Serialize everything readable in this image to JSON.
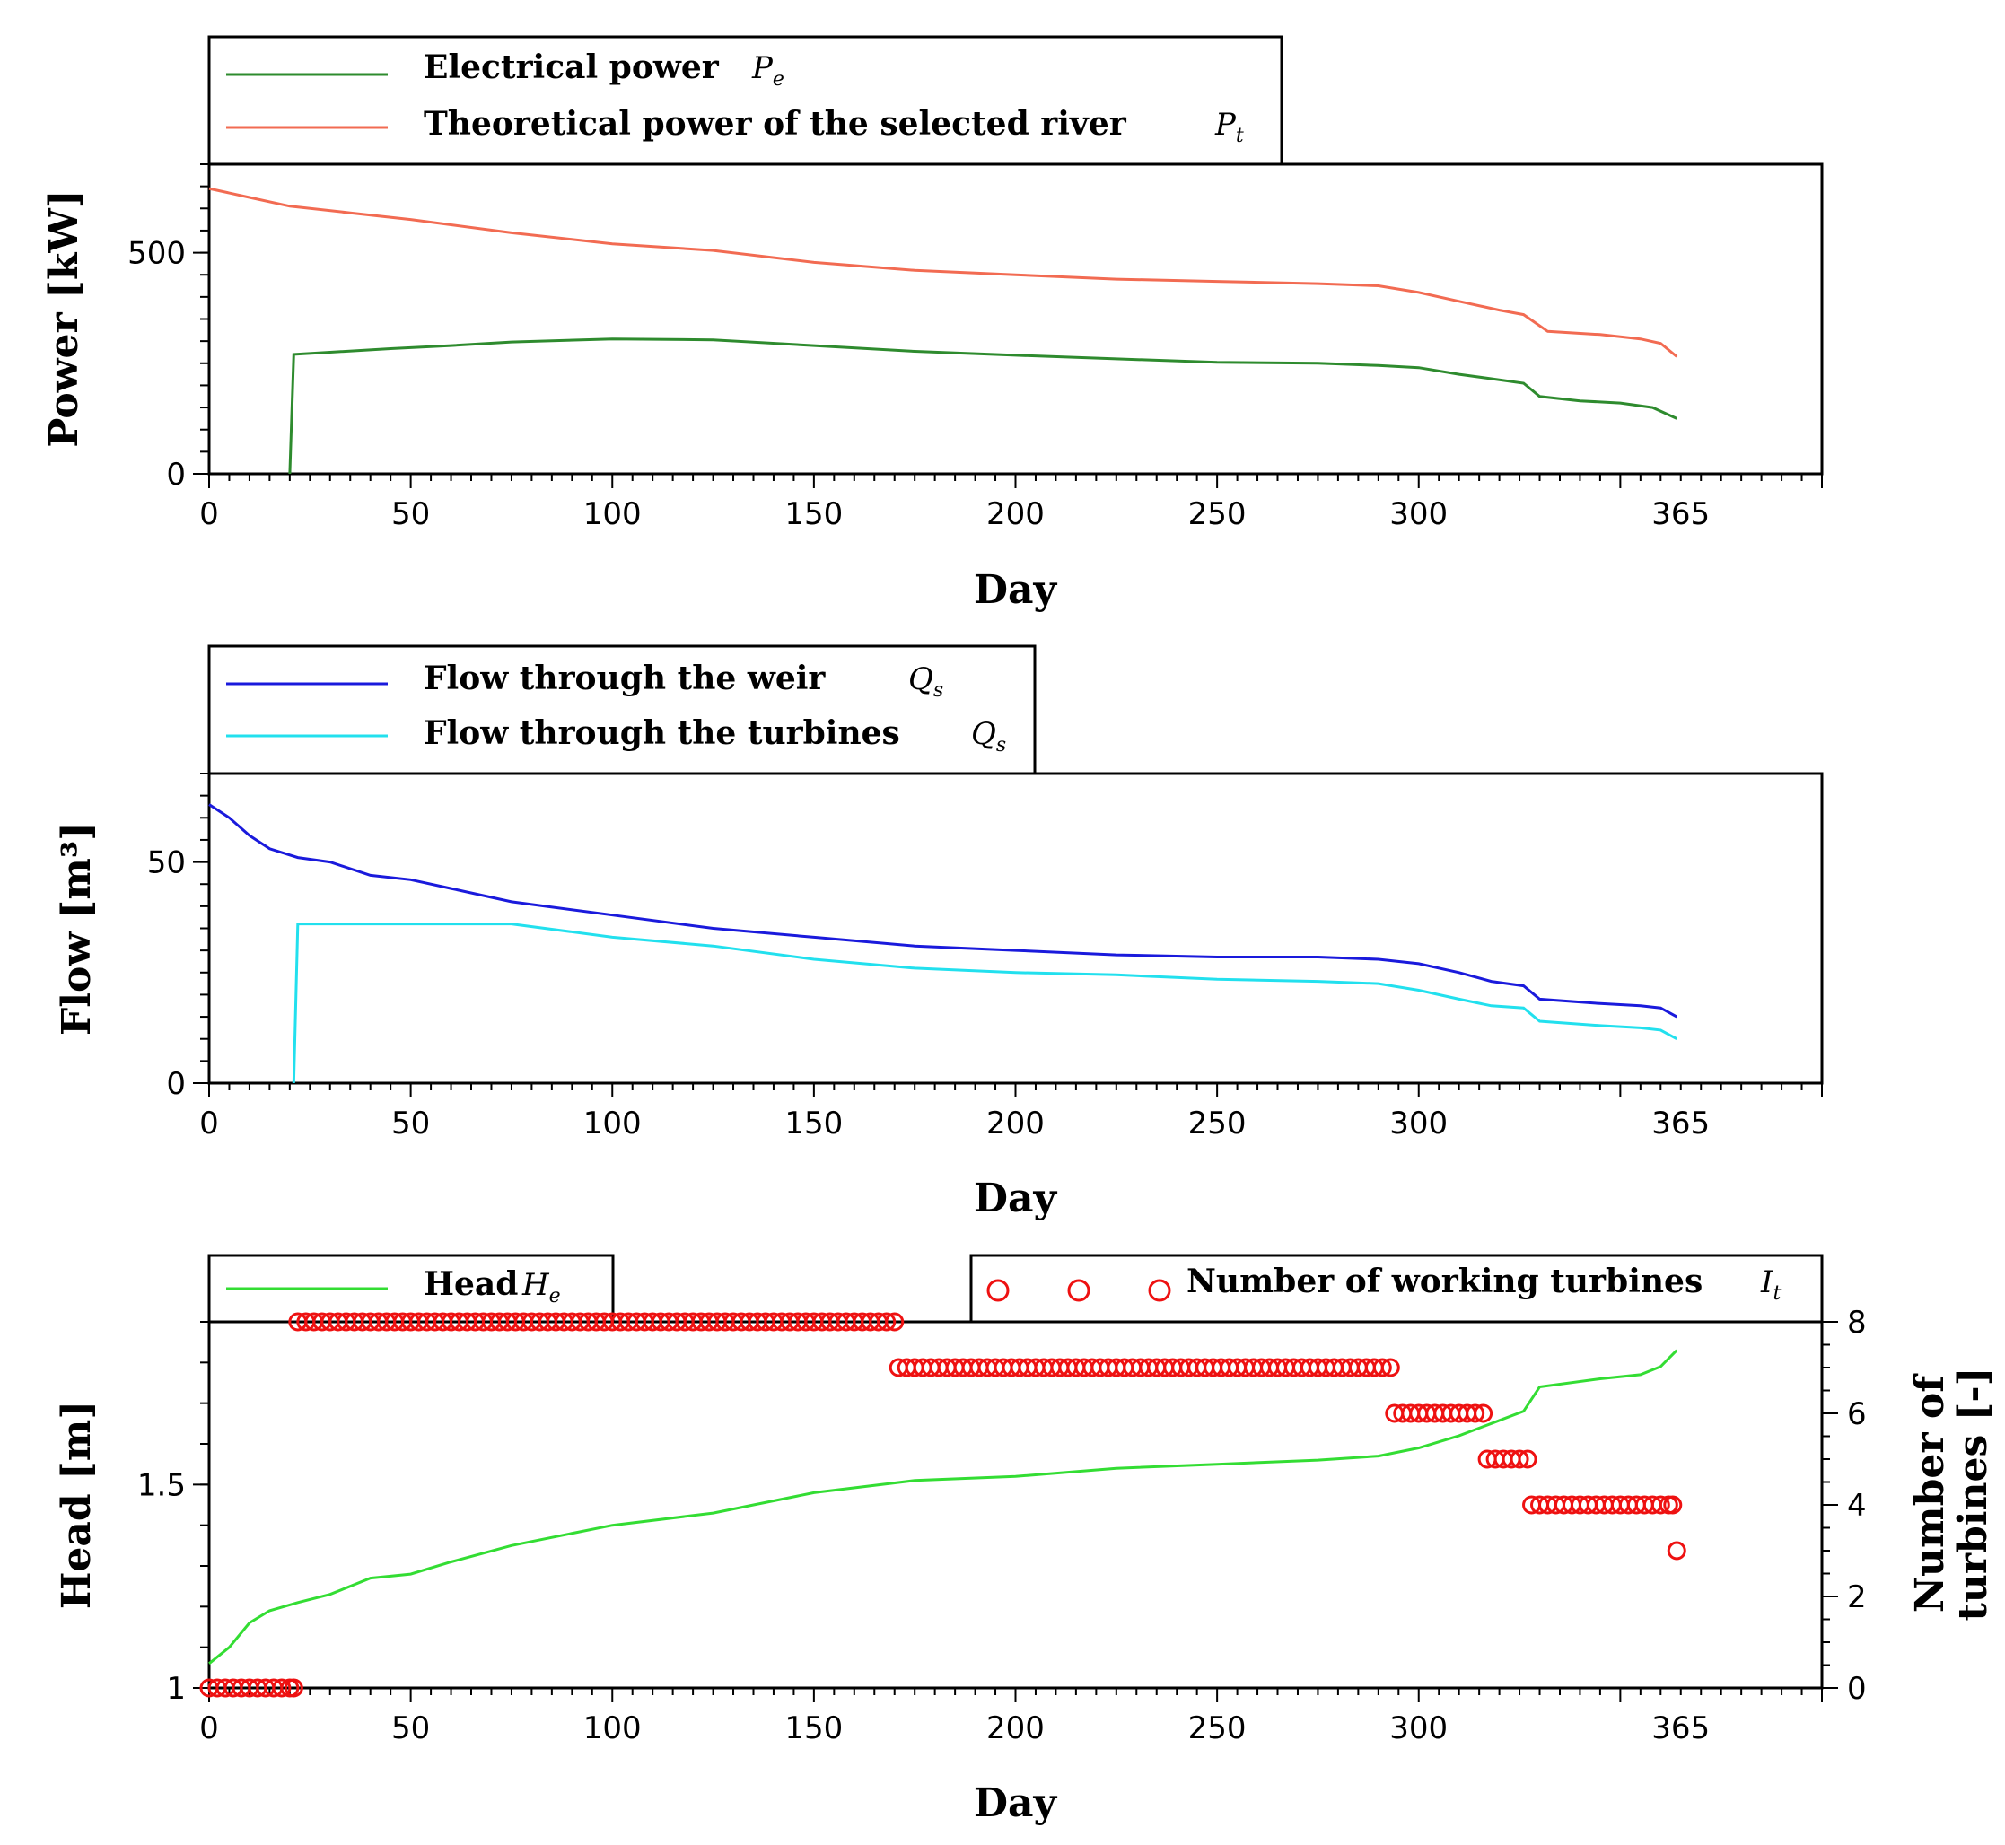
{
  "colors": {
    "electrical": "#2e8b2e",
    "theoretical": "#f26b52",
    "weir": "#1a1adc",
    "turbines_flow": "#22e0ee",
    "head": "#33dd33",
    "turbine_markers": "#ee1111"
  },
  "chart_data": [
    {
      "type": "line",
      "title": "",
      "xlabel": "Day",
      "ylabel": "Power [kW]",
      "xlim": [
        0,
        400
      ],
      "ylim": [
        0,
        700
      ],
      "x_ticks": [
        "0",
        "50",
        "100",
        "150",
        "200",
        "250",
        "300",
        "365"
      ],
      "x_tick_values": [
        0,
        50,
        100,
        150,
        200,
        250,
        300,
        365
      ],
      "y_ticks": [
        "0",
        "500"
      ],
      "y_tick_values": [
        0,
        500
      ],
      "legend": [
        {
          "label": "Electrical power",
          "symbol": "P",
          "sub": "e"
        },
        {
          "label": "Theoretical power of  the  selected  river",
          "symbol": "P",
          "sub": "t"
        }
      ],
      "series": [
        {
          "name": "Electrical power Pe",
          "points": [
            [
              20,
              0
            ],
            [
              21,
              270
            ],
            [
              30,
              275
            ],
            [
              45,
              283
            ],
            [
              60,
              290
            ],
            [
              75,
              298
            ],
            [
              100,
              305
            ],
            [
              125,
              303
            ],
            [
              150,
              290
            ],
            [
              175,
              277
            ],
            [
              200,
              268
            ],
            [
              225,
              260
            ],
            [
              250,
              252
            ],
            [
              275,
              250
            ],
            [
              290,
              245
            ],
            [
              300,
              240
            ],
            [
              310,
              225
            ],
            [
              318,
              215
            ],
            [
              326,
              205
            ],
            [
              330,
              175
            ],
            [
              340,
              165
            ],
            [
              350,
              160
            ],
            [
              358,
              150
            ],
            [
              364,
              125
            ]
          ]
        },
        {
          "name": "Theoretical power Pt",
          "points": [
            [
              0,
              645
            ],
            [
              10,
              625
            ],
            [
              20,
              605
            ],
            [
              35,
              590
            ],
            [
              50,
              575
            ],
            [
              75,
              545
            ],
            [
              100,
              520
            ],
            [
              125,
              505
            ],
            [
              150,
              478
            ],
            [
              175,
              460
            ],
            [
              200,
              450
            ],
            [
              225,
              440
            ],
            [
              250,
              435
            ],
            [
              275,
              430
            ],
            [
              290,
              425
            ],
            [
              300,
              410
            ],
            [
              310,
              390
            ],
            [
              320,
              370
            ],
            [
              326,
              360
            ],
            [
              332,
              322
            ],
            [
              345,
              315
            ],
            [
              355,
              305
            ],
            [
              360,
              295
            ],
            [
              364,
              265
            ]
          ]
        }
      ]
    },
    {
      "type": "line",
      "title": "",
      "xlabel": "Day",
      "ylabel": "Flow [m³]",
      "xlim": [
        0,
        400
      ],
      "ylim": [
        0,
        70
      ],
      "x_ticks": [
        "0",
        "50",
        "100",
        "150",
        "200",
        "250",
        "300",
        "365"
      ],
      "x_tick_values": [
        0,
        50,
        100,
        150,
        200,
        250,
        300,
        365
      ],
      "y_ticks": [
        "0",
        "50"
      ],
      "y_tick_values": [
        0,
        50
      ],
      "legend": [
        {
          "label": "Flow through  the  weir",
          "symbol": "Q",
          "sub": "s"
        },
        {
          "label": "Flow through  the  turbines",
          "symbol": "Q",
          "sub": "s"
        }
      ],
      "series": [
        {
          "name": "Flow through the weir",
          "points": [
            [
              0,
              63
            ],
            [
              5,
              60
            ],
            [
              10,
              56
            ],
            [
              15,
              53
            ],
            [
              22,
              51
            ],
            [
              30,
              50
            ],
            [
              40,
              47
            ],
            [
              50,
              46
            ],
            [
              60,
              44
            ],
            [
              75,
              41
            ],
            [
              100,
              38
            ],
            [
              125,
              35
            ],
            [
              150,
              33
            ],
            [
              175,
              31
            ],
            [
              200,
              30
            ],
            [
              225,
              29
            ],
            [
              250,
              28.5
            ],
            [
              275,
              28.5
            ],
            [
              290,
              28
            ],
            [
              300,
              27
            ],
            [
              310,
              25
            ],
            [
              318,
              23
            ],
            [
              326,
              22
            ],
            [
              330,
              19
            ],
            [
              345,
              18
            ],
            [
              355,
              17.5
            ],
            [
              360,
              17
            ],
            [
              364,
              15
            ]
          ]
        },
        {
          "name": "Flow through the turbines",
          "points": [
            [
              21,
              0
            ],
            [
              22,
              36
            ],
            [
              50,
              36
            ],
            [
              75,
              36
            ],
            [
              100,
              33
            ],
            [
              125,
              31
            ],
            [
              150,
              28
            ],
            [
              175,
              26
            ],
            [
              200,
              25
            ],
            [
              225,
              24.5
            ],
            [
              250,
              23.5
            ],
            [
              275,
              23
            ],
            [
              290,
              22.5
            ],
            [
              300,
              21
            ],
            [
              310,
              19
            ],
            [
              318,
              17.5
            ],
            [
              326,
              17
            ],
            [
              330,
              14
            ],
            [
              345,
              13
            ],
            [
              355,
              12.5
            ],
            [
              360,
              12
            ],
            [
              364,
              10
            ]
          ]
        }
      ]
    },
    {
      "type": "line+scatter",
      "title": "",
      "xlabel": "Day",
      "ylabel": "Head [m]",
      "y2label": "Number  of turbines [-]",
      "xlim": [
        0,
        400
      ],
      "ylim": [
        1,
        1.9
      ],
      "y2lim": [
        0,
        8
      ],
      "x_ticks": [
        "0",
        "50",
        "100",
        "150",
        "200",
        "250",
        "300",
        "365"
      ],
      "x_tick_values": [
        0,
        50,
        100,
        150,
        200,
        250,
        300,
        365
      ],
      "y_ticks": [
        "1",
        "1.5"
      ],
      "y_tick_values": [
        1,
        1.5
      ],
      "y2_ticks": [
        "0",
        "2",
        "4",
        "6",
        "8"
      ],
      "y2_tick_values": [
        0,
        2,
        4,
        6,
        8
      ],
      "legend": [
        {
          "label": "Head",
          "symbol": "H",
          "sub": "e"
        },
        {
          "label": "Number of  working turbines",
          "symbol": "I",
          "sub": "t"
        }
      ],
      "series": [
        {
          "name": "Head He",
          "axis": "left",
          "points": [
            [
              0,
              1.06
            ],
            [
              5,
              1.1
            ],
            [
              10,
              1.16
            ],
            [
              15,
              1.19
            ],
            [
              22,
              1.21
            ],
            [
              30,
              1.23
            ],
            [
              40,
              1.27
            ],
            [
              50,
              1.28
            ],
            [
              60,
              1.31
            ],
            [
              75,
              1.35
            ],
            [
              100,
              1.4
            ],
            [
              125,
              1.43
            ],
            [
              150,
              1.48
            ],
            [
              175,
              1.51
            ],
            [
              200,
              1.52
            ],
            [
              225,
              1.54
            ],
            [
              250,
              1.55
            ],
            [
              275,
              1.56
            ],
            [
              290,
              1.57
            ],
            [
              300,
              1.59
            ],
            [
              310,
              1.62
            ],
            [
              318,
              1.65
            ],
            [
              326,
              1.68
            ],
            [
              330,
              1.74
            ],
            [
              345,
              1.76
            ],
            [
              355,
              1.77
            ],
            [
              360,
              1.79
            ],
            [
              364,
              1.83
            ]
          ]
        },
        {
          "name": "Number of working turbines It",
          "axis": "right",
          "segments": [
            {
              "from": 0,
              "to": 21,
              "value": 0
            },
            {
              "from": 22,
              "to": 170,
              "value": 8
            },
            {
              "from": 171,
              "to": 293,
              "value": 7
            },
            {
              "from": 294,
              "to": 316,
              "value": 6
            },
            {
              "from": 317,
              "to": 327,
              "value": 5
            },
            {
              "from": 328,
              "to": 363,
              "value": 4
            },
            {
              "from": 364,
              "to": 364,
              "value": 3
            }
          ]
        }
      ]
    }
  ]
}
